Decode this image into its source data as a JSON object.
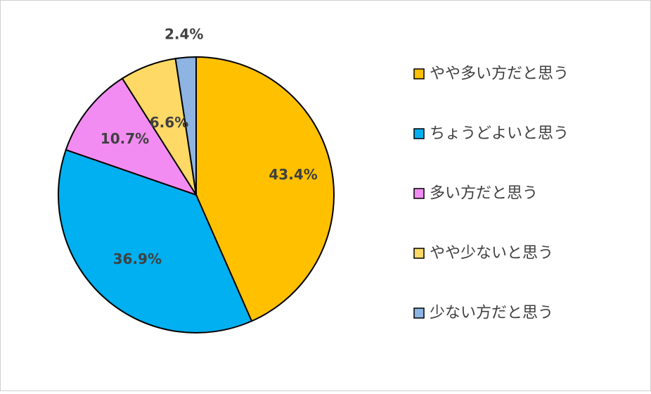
{
  "chart_data": {
    "type": "pie",
    "categories": [
      "やや多い方だと思う",
      "ちょうどよいと思う",
      "多い方だと思う",
      "やや少ないと思う",
      "少ない方だと思う"
    ],
    "values": [
      43.4,
      36.9,
      10.7,
      6.6,
      2.4
    ],
    "data_labels": [
      "43.4%",
      "36.9%",
      "10.7%",
      "6.6%",
      "2.4%"
    ],
    "colors": [
      "#FFC000",
      "#00B0F0",
      "#F28CF2",
      "#FFD966",
      "#8DB4E2"
    ],
    "start_angle_deg": 0,
    "direction": "clockwise",
    "legend_position": "right"
  }
}
